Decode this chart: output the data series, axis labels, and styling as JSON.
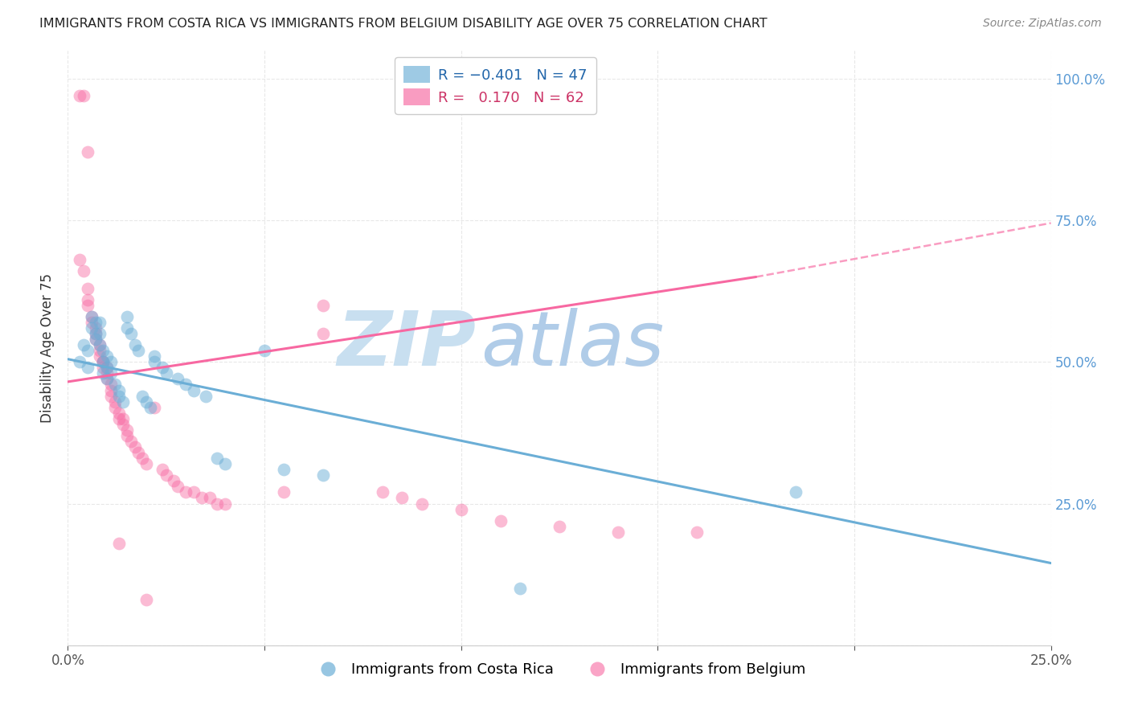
{
  "title": "IMMIGRANTS FROM COSTA RICA VS IMMIGRANTS FROM BELGIUM DISABILITY AGE OVER 75 CORRELATION CHART",
  "source": "Source: ZipAtlas.com",
  "ylabel": "Disability Age Over 75",
  "xlim": [
    0.0,
    0.25
  ],
  "ylim": [
    0.0,
    1.05
  ],
  "blue_color": "#6baed6",
  "pink_color": "#f768a1",
  "blue_scatter": [
    [
      0.003,
      0.5
    ],
    [
      0.004,
      0.53
    ],
    [
      0.005,
      0.52
    ],
    [
      0.005,
      0.49
    ],
    [
      0.006,
      0.58
    ],
    [
      0.006,
      0.56
    ],
    [
      0.007,
      0.57
    ],
    [
      0.007,
      0.55
    ],
    [
      0.007,
      0.54
    ],
    [
      0.008,
      0.57
    ],
    [
      0.008,
      0.55
    ],
    [
      0.008,
      0.53
    ],
    [
      0.009,
      0.52
    ],
    [
      0.009,
      0.5
    ],
    [
      0.009,
      0.48
    ],
    [
      0.01,
      0.51
    ],
    [
      0.01,
      0.49
    ],
    [
      0.01,
      0.47
    ],
    [
      0.011,
      0.5
    ],
    [
      0.011,
      0.48
    ],
    [
      0.012,
      0.46
    ],
    [
      0.013,
      0.45
    ],
    [
      0.013,
      0.44
    ],
    [
      0.014,
      0.43
    ],
    [
      0.015,
      0.58
    ],
    [
      0.015,
      0.56
    ],
    [
      0.016,
      0.55
    ],
    [
      0.017,
      0.53
    ],
    [
      0.018,
      0.52
    ],
    [
      0.019,
      0.44
    ],
    [
      0.02,
      0.43
    ],
    [
      0.021,
      0.42
    ],
    [
      0.022,
      0.51
    ],
    [
      0.022,
      0.5
    ],
    [
      0.024,
      0.49
    ],
    [
      0.025,
      0.48
    ],
    [
      0.028,
      0.47
    ],
    [
      0.03,
      0.46
    ],
    [
      0.032,
      0.45
    ],
    [
      0.035,
      0.44
    ],
    [
      0.038,
      0.33
    ],
    [
      0.04,
      0.32
    ],
    [
      0.05,
      0.52
    ],
    [
      0.055,
      0.31
    ],
    [
      0.065,
      0.3
    ],
    [
      0.185,
      0.27
    ],
    [
      0.115,
      0.1
    ]
  ],
  "pink_scatter": [
    [
      0.003,
      0.97
    ],
    [
      0.004,
      0.97
    ],
    [
      0.005,
      0.87
    ],
    [
      0.003,
      0.68
    ],
    [
      0.004,
      0.66
    ],
    [
      0.005,
      0.63
    ],
    [
      0.005,
      0.61
    ],
    [
      0.005,
      0.6
    ],
    [
      0.006,
      0.58
    ],
    [
      0.006,
      0.57
    ],
    [
      0.007,
      0.56
    ],
    [
      0.007,
      0.55
    ],
    [
      0.007,
      0.54
    ],
    [
      0.008,
      0.53
    ],
    [
      0.008,
      0.52
    ],
    [
      0.008,
      0.51
    ],
    [
      0.009,
      0.5
    ],
    [
      0.009,
      0.5
    ],
    [
      0.009,
      0.49
    ],
    [
      0.01,
      0.49
    ],
    [
      0.01,
      0.48
    ],
    [
      0.01,
      0.47
    ],
    [
      0.011,
      0.46
    ],
    [
      0.011,
      0.45
    ],
    [
      0.011,
      0.44
    ],
    [
      0.012,
      0.43
    ],
    [
      0.012,
      0.42
    ],
    [
      0.013,
      0.41
    ],
    [
      0.013,
      0.4
    ],
    [
      0.014,
      0.4
    ],
    [
      0.014,
      0.39
    ],
    [
      0.015,
      0.38
    ],
    [
      0.015,
      0.37
    ],
    [
      0.016,
      0.36
    ],
    [
      0.017,
      0.35
    ],
    [
      0.018,
      0.34
    ],
    [
      0.019,
      0.33
    ],
    [
      0.02,
      0.32
    ],
    [
      0.022,
      0.42
    ],
    [
      0.024,
      0.31
    ],
    [
      0.025,
      0.3
    ],
    [
      0.027,
      0.29
    ],
    [
      0.028,
      0.28
    ],
    [
      0.03,
      0.27
    ],
    [
      0.032,
      0.27
    ],
    [
      0.034,
      0.26
    ],
    [
      0.036,
      0.26
    ],
    [
      0.038,
      0.25
    ],
    [
      0.04,
      0.25
    ],
    [
      0.013,
      0.18
    ],
    [
      0.02,
      0.08
    ],
    [
      0.055,
      0.27
    ],
    [
      0.065,
      0.6
    ],
    [
      0.065,
      0.55
    ],
    [
      0.08,
      0.27
    ],
    [
      0.085,
      0.26
    ],
    [
      0.09,
      0.25
    ],
    [
      0.1,
      0.24
    ],
    [
      0.11,
      0.22
    ],
    [
      0.125,
      0.21
    ],
    [
      0.14,
      0.2
    ],
    [
      0.16,
      0.2
    ]
  ],
  "blue_line": {
    "x0": 0.0,
    "y0": 0.505,
    "x1": 0.25,
    "y1": 0.145
  },
  "pink_line_solid": {
    "x0": 0.0,
    "y0": 0.465,
    "x1": 0.175,
    "y1": 0.65
  },
  "pink_line_dashed": {
    "x0": 0.175,
    "y0": 0.65,
    "x1": 0.25,
    "y1": 0.745
  },
  "watermark_zip": "ZIP",
  "watermark_atlas": "atlas",
  "watermark_color_zip": "#c8dff0",
  "watermark_color_atlas": "#b0cce8",
  "background_color": "#ffffff",
  "grid_color": "#e8e8e8",
  "right_tick_color": "#5b9bd5",
  "legend1_label_r": "R = ",
  "legend1_r_val": "-0.401",
  "legend1_n": "N = 47",
  "legend2_label_r": "R = ",
  "legend2_r_val": " 0.170",
  "legend2_n": "N = 62"
}
